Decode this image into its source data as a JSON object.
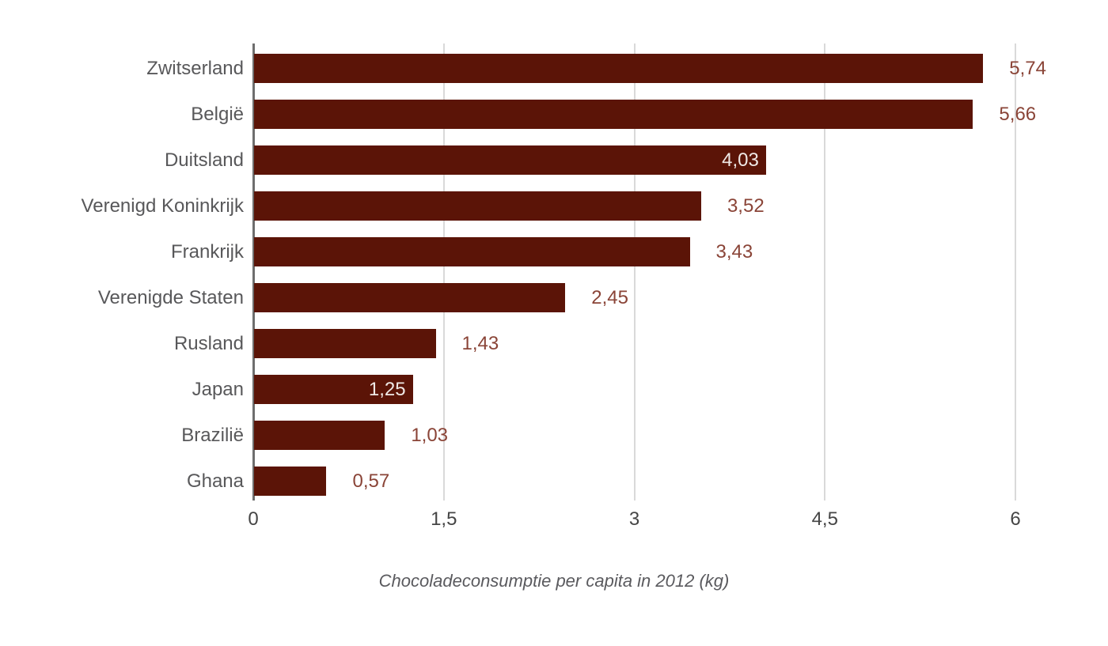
{
  "chart_data": {
    "type": "bar",
    "orientation": "horizontal",
    "title": "Chocoladeconsumptie per capita in 2012 (kg)",
    "xlabel": "",
    "ylabel": "",
    "categories": [
      "Zwitserland",
      "België",
      "Duitsland",
      "Verenigd Koninkrijk",
      "Frankrijk",
      "Verenigde Staten",
      "Rusland",
      "Japan",
      "Brazilië",
      "Ghana"
    ],
    "values": [
      5.74,
      5.66,
      4.03,
      3.52,
      3.43,
      2.45,
      1.43,
      1.25,
      1.03,
      0.57
    ],
    "value_labels": [
      "5,74",
      "5,66",
      "4,03",
      "3,52",
      "3,43",
      "2,45",
      "1,43",
      "1,25",
      "1,03",
      "0,57"
    ],
    "label_inside": [
      false,
      false,
      true,
      false,
      false,
      false,
      false,
      true,
      false,
      false
    ],
    "x_ticks": [
      {
        "value": 0,
        "label": "0"
      },
      {
        "value": 1.5,
        "label": "1,5"
      },
      {
        "value": 3,
        "label": "3"
      },
      {
        "value": 4.5,
        "label": "4,5"
      },
      {
        "value": 6,
        "label": "6"
      }
    ],
    "xlim": [
      0,
      6
    ],
    "grid": true,
    "legend": "none",
    "colors": {
      "bar": "#5B1407",
      "value_label_outside": "#8A4437",
      "value_label_inside": "#EFE9E6",
      "axis_line": "#6E6E6E",
      "gridline": "#D9D9D9",
      "category_label": "#58585A",
      "tick_label": "#454545",
      "title": "#5A5A5E",
      "background": "#FFFFFF"
    }
  }
}
